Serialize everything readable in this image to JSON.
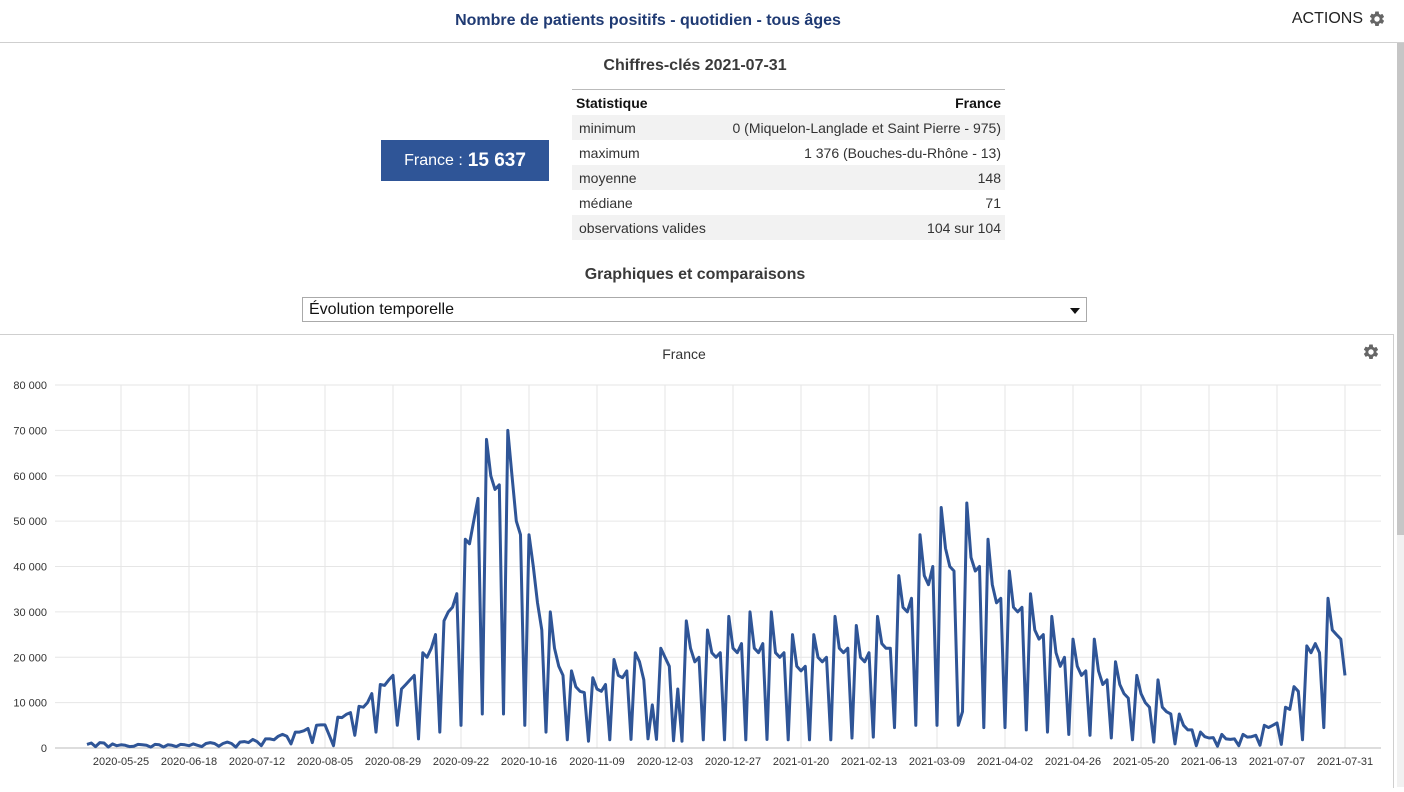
{
  "header": {
    "title": "Nombre de patients positifs - quotidien - tous âges",
    "actions_label": "ACTIONS"
  },
  "keyfigures": {
    "title": "Chiffres-clés 2021-07-31",
    "france_label": "France :",
    "france_value": "15 637",
    "table": {
      "col_stat": "Statistique",
      "col_france": "France",
      "rows": [
        {
          "label": "minimum",
          "value": "0 (Miquelon-Langlade et Saint Pierre - 975)"
        },
        {
          "label": "maximum",
          "value": "1 376 (Bouches-du-Rhône - 13)"
        },
        {
          "label": "moyenne",
          "value": "148"
        },
        {
          "label": "médiane",
          "value": "71"
        },
        {
          "label": "observations valides",
          "value": "104 sur 104"
        }
      ]
    }
  },
  "graphs": {
    "title": "Graphiques et comparaisons",
    "select_value": "Évolution temporelle"
  },
  "chart_data": {
    "type": "line",
    "title": "France",
    "ylim": [
      0,
      80000
    ],
    "yticks": [
      0,
      10000,
      20000,
      30000,
      40000,
      50000,
      60000,
      70000,
      80000
    ],
    "ytick_labels": [
      "0",
      "10 000",
      "20 000",
      "30 000",
      "40 000",
      "50 000",
      "60 000",
      "70 000",
      "80 000"
    ],
    "xticks": [
      "2020-05-25",
      "2020-06-18",
      "2020-07-12",
      "2020-08-05",
      "2020-08-29",
      "2020-09-22",
      "2020-10-16",
      "2020-11-09",
      "2020-12-03",
      "2020-12-27",
      "2021-01-20",
      "2021-02-13",
      "2021-03-09",
      "2021-04-02",
      "2021-04-26",
      "2021-05-20",
      "2021-06-13",
      "2021-07-07",
      "2021-07-31"
    ],
    "x_start": "2020-05-13",
    "x_end": "2021-07-31",
    "series": [
      {
        "name": "France",
        "color": "#2f5597",
        "values": [
          800,
          1100,
          300,
          1200,
          1100,
          200,
          900,
          500,
          700,
          600,
          300,
          400,
          800,
          700,
          600,
          200,
          800,
          700,
          200,
          700,
          600,
          300,
          800,
          700,
          500,
          900,
          600,
          300,
          1000,
          1200,
          1000,
          400,
          1000,
          1300,
          1000,
          200,
          1300,
          1400,
          1200,
          1900,
          1400,
          500,
          2000,
          2000,
          1800,
          2600,
          3000,
          2600,
          900,
          3500,
          3500,
          3800,
          4300,
          1200,
          5000,
          5100,
          5100,
          2800,
          500,
          6800,
          6700,
          7400,
          7800,
          2800,
          9200,
          9000,
          10000,
          12000,
          3500,
          14000,
          13800,
          15000,
          16000,
          5000,
          13000,
          14000,
          15000,
          16000,
          2000,
          21000,
          20000,
          22000,
          25000,
          3500,
          28000,
          30000,
          31000,
          34000,
          5000,
          46000,
          45000,
          50000,
          55000,
          7500,
          68000,
          60000,
          57000,
          58000,
          7500,
          70000,
          60000,
          50000,
          47000,
          5000,
          47000,
          40000,
          32000,
          26000,
          3500,
          30000,
          22000,
          18000,
          16000,
          1800,
          17000,
          13500,
          12500,
          12200,
          1500,
          15500,
          13000,
          12500,
          14000,
          1800,
          19500,
          16000,
          15500,
          17000,
          1900,
          21000,
          19000,
          15000,
          2000,
          9500,
          1900,
          22000,
          20000,
          18000,
          1600,
          13000,
          1500,
          28000,
          22000,
          19000,
          20000,
          1800,
          26000,
          21000,
          20000,
          21000,
          1800,
          29000,
          22000,
          21000,
          23000,
          1800,
          30000,
          22000,
          21000,
          23000,
          1900,
          30000,
          21000,
          20000,
          21000,
          1800,
          25000,
          18000,
          17000,
          18000,
          1800,
          25000,
          20000,
          19000,
          20000,
          1800,
          29000,
          22000,
          21000,
          22000,
          2200,
          27000,
          20000,
          19000,
          21000,
          2400,
          29000,
          23000,
          22000,
          22000,
          4500,
          38000,
          31000,
          30000,
          33000,
          5000,
          47000,
          38000,
          36000,
          40000,
          5000,
          53000,
          44000,
          40000,
          39000,
          5000,
          8000,
          54000,
          42000,
          39000,
          40000,
          4500,
          46000,
          36000,
          32000,
          33000,
          4500,
          39000,
          31000,
          30000,
          31000,
          4000,
          34000,
          26000,
          24000,
          25000,
          3500,
          29000,
          21000,
          18000,
          20000,
          3000,
          24000,
          18000,
          16000,
          17000,
          2800,
          24000,
          17000,
          14000,
          15000,
          2200,
          19000,
          14000,
          12000,
          11000,
          1800,
          16000,
          12000,
          10000,
          9000,
          1300,
          15000,
          9000,
          8000,
          7500,
          900,
          7500,
          5000,
          4000,
          4000,
          500,
          3500,
          2500,
          2200,
          2300,
          400,
          3000,
          2000,
          1900,
          2000,
          500,
          3000,
          2400,
          2500,
          2800,
          600,
          5000,
          4500,
          5000,
          5500,
          800,
          9000,
          8500,
          13500,
          12500,
          1800,
          22500,
          21000,
          23000,
          21000,
          4500,
          33000,
          26000,
          25000,
          24000,
          16000
        ]
      }
    ]
  }
}
